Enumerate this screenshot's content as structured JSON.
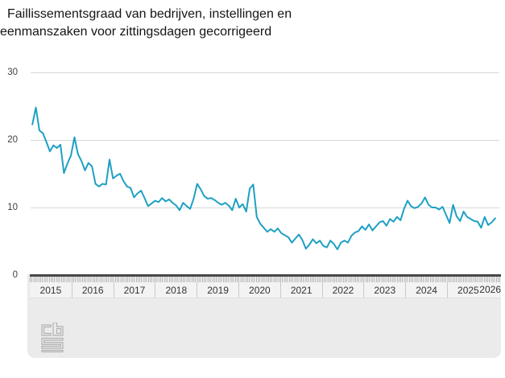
{
  "title": {
    "line1": "Faillissementsgraad van bedrijven, instellingen en",
    "line2": "eenmanszaken voor zittingsdagen gecorrigeerd"
  },
  "footer": {
    "logo": "cbs-logo",
    "logo_color": "#b0b0b0"
  },
  "chart_data": {
    "type": "line",
    "title": "Faillissementsgraad van bedrijven, instellingen en eenmanszaken voor zittingsdagen gecorrigeerd",
    "frequency": "monthly",
    "start": "2015-01",
    "end": "2026-01",
    "line_color": "#1ea0c3",
    "grid_color": "#d8d8d8",
    "legend": "none",
    "y_axis": {
      "ticks": [
        0,
        10,
        20,
        30
      ],
      "range": [
        0,
        32.5
      ],
      "gridlines": true
    },
    "x_axis": {
      "years": [
        2015,
        2016,
        2017,
        2018,
        2019,
        2020,
        2021,
        2022,
        2023,
        2024,
        2025,
        2026
      ]
    },
    "series": [
      {
        "name": "Faillissementsgraad",
        "values": [
          22.3,
          24.8,
          21.4,
          21.0,
          19.7,
          18.3,
          19.2,
          18.8,
          19.3,
          15.1,
          16.5,
          17.7,
          20.4,
          17.9,
          16.9,
          15.5,
          16.6,
          16.1,
          13.5,
          13.1,
          13.5,
          13.4,
          17.1,
          14.3,
          14.7,
          15.0,
          13.9,
          13.1,
          12.9,
          11.5,
          12.1,
          12.5,
          11.4,
          10.2,
          10.6,
          11.0,
          10.8,
          11.4,
          10.9,
          11.2,
          10.7,
          10.3,
          9.6,
          10.7,
          10.2,
          9.8,
          11.3,
          13.5,
          12.7,
          11.7,
          11.3,
          11.4,
          11.1,
          10.7,
          10.4,
          10.7,
          10.3,
          9.6,
          11.3,
          10.0,
          10.5,
          9.4,
          12.8,
          13.4,
          8.6,
          7.6,
          7.0,
          6.4,
          6.8,
          6.4,
          6.9,
          6.2,
          5.9,
          5.6,
          4.8,
          5.4,
          6.0,
          5.2,
          3.9,
          4.5,
          5.3,
          4.7,
          5.1,
          4.3,
          4.1,
          5.1,
          4.6,
          3.8,
          4.8,
          5.1,
          4.8,
          5.8,
          6.3,
          6.5,
          7.2,
          6.7,
          7.5,
          6.6,
          7.2,
          7.8,
          8.0,
          7.3,
          8.3,
          7.9,
          8.6,
          8.1,
          9.8,
          11.0,
          10.2,
          9.9,
          10.1,
          10.6,
          11.5,
          10.4,
          10.0,
          10.0,
          9.7,
          10.1,
          8.9,
          7.7,
          10.4,
          8.7,
          8.0,
          9.4,
          8.6,
          8.3,
          8.0,
          7.9,
          7.0,
          8.6,
          7.4,
          7.8,
          8.4
        ]
      }
    ]
  }
}
